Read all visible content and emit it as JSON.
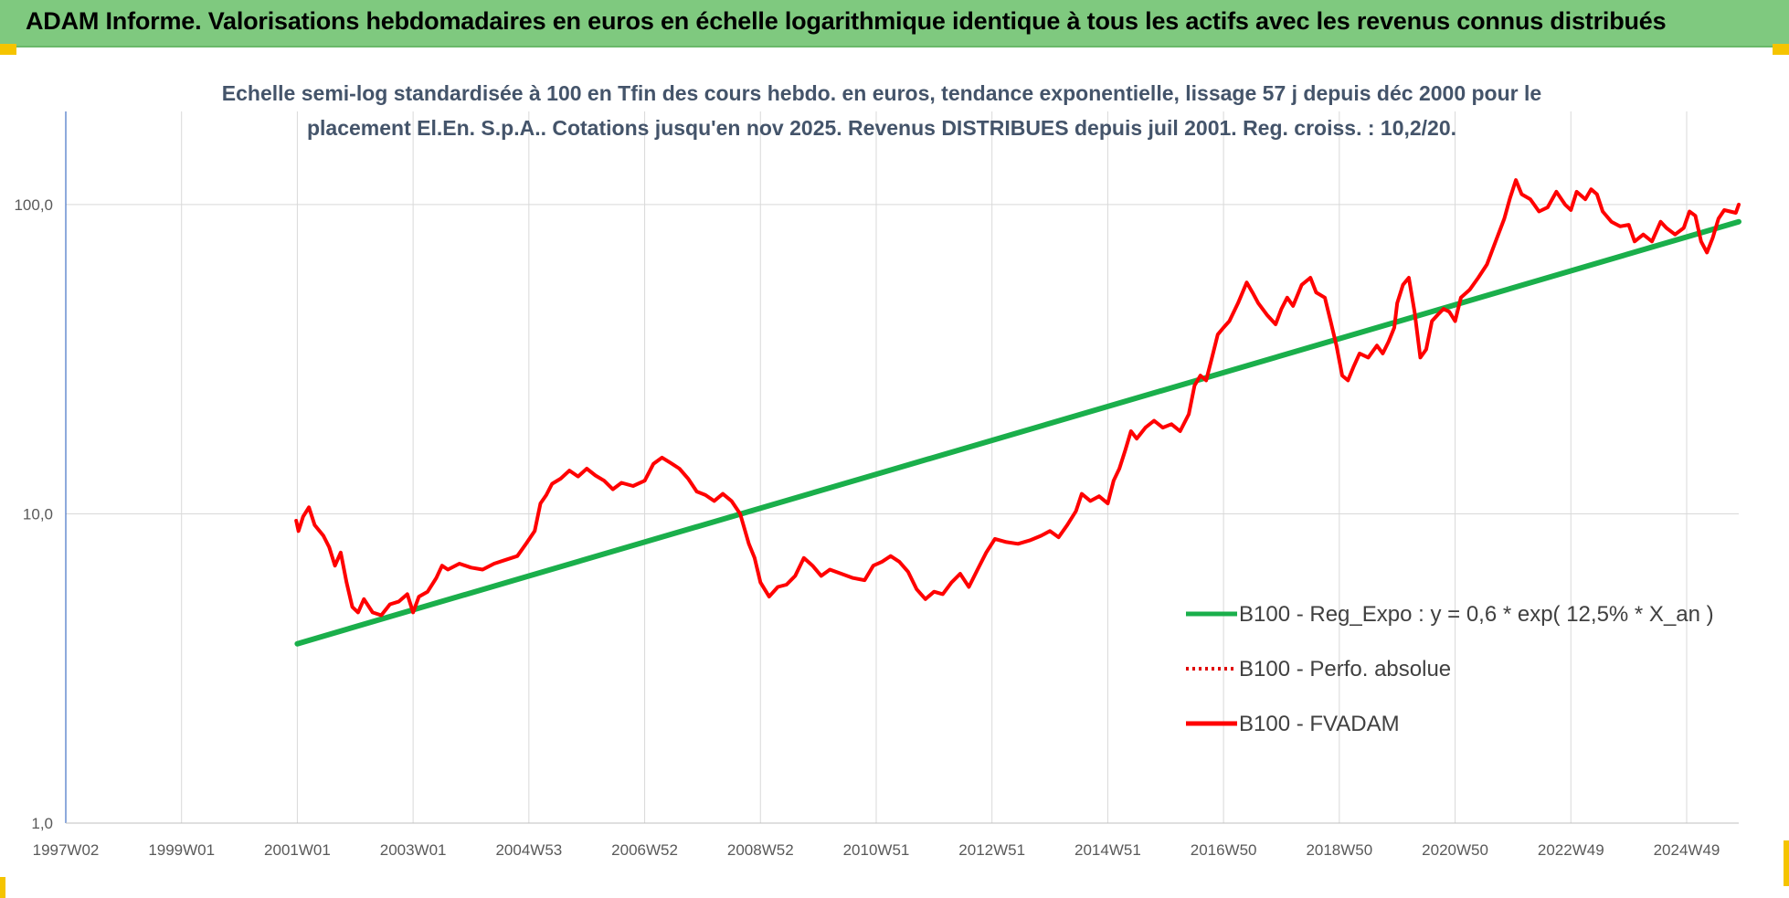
{
  "banner": {
    "title": "ADAM Informe. Valorisations hebdomadaires en euros en échelle logarithmique identique à tous les actifs avec les revenus connus distribués"
  },
  "colors": {
    "banner_bg": "#7fc97f",
    "accent_yellow": "#f5c400",
    "trend_green": "#1aaf4b",
    "fvadam_red": "#ff0000",
    "perf_red": "#e00000",
    "grid": "#d9d9d9",
    "subtitle": "#44546a"
  },
  "chart_data": {
    "type": "line",
    "title_lines": [
      "Echelle semi-log standardisée à 100 en Tfin des cours hebdo. en euros, tendance exponentielle, lissage 57 j depuis déc 2000 pour le",
      "placement El.En. S.p.A.. Cotations jusqu'en nov 2025. Revenus DISTRIBUES depuis juil 2001. Reg. croiss. : 10,2/20."
    ],
    "xlabel": "",
    "ylabel": "",
    "y_scale": "log",
    "ylim": [
      1,
      200
    ],
    "xlim": [
      1997.0,
      2025.9
    ],
    "y_ticks": [
      {
        "value": 1,
        "label": "1,0"
      },
      {
        "value": 10,
        "label": "10,0"
      },
      {
        "value": 100,
        "label": "100,0"
      }
    ],
    "x_ticks": [
      {
        "value": 1997.0,
        "label": "1997W02"
      },
      {
        "value": 1999.0,
        "label": "1999W01"
      },
      {
        "value": 2001.0,
        "label": "2001W01"
      },
      {
        "value": 2003.0,
        "label": "2003W01"
      },
      {
        "value": 2005.0,
        "label": "2004W53"
      },
      {
        "value": 2007.0,
        "label": "2006W52"
      },
      {
        "value": 2009.0,
        "label": "2008W52"
      },
      {
        "value": 2011.0,
        "label": "2010W51"
      },
      {
        "value": 2013.0,
        "label": "2012W51"
      },
      {
        "value": 2015.0,
        "label": "2014W51"
      },
      {
        "value": 2017.0,
        "label": "2016W50"
      },
      {
        "value": 2019.0,
        "label": "2018W50"
      },
      {
        "value": 2021.0,
        "label": "2020W50"
      },
      {
        "value": 2023.0,
        "label": "2022W49"
      },
      {
        "value": 2025.0,
        "label": "2024W49"
      }
    ],
    "grid": true,
    "legend_position": "right",
    "series": [
      {
        "name": "B100 - Reg_Expo : y = 0,6 * exp( 12,5% * X_an )",
        "color": "#1aaf4b",
        "style": "solid",
        "points": [
          [
            2001.0,
            3.8
          ],
          [
            2025.9,
            88
          ]
        ]
      },
      {
        "name": "B100 - Perfo. absolue",
        "color": "#e00000",
        "style": "dotted",
        "points": []
      },
      {
        "name": "B100 - FVADAM",
        "color": "#ff0000",
        "style": "solid",
        "points": [
          [
            2000.98,
            9.5
          ],
          [
            2001.02,
            8.8
          ],
          [
            2001.1,
            9.8
          ],
          [
            2001.2,
            10.5
          ],
          [
            2001.3,
            9.2
          ],
          [
            2001.45,
            8.5
          ],
          [
            2001.55,
            7.8
          ],
          [
            2001.65,
            6.8
          ],
          [
            2001.75,
            7.5
          ],
          [
            2001.85,
            6.0
          ],
          [
            2001.95,
            5.0
          ],
          [
            2002.05,
            4.8
          ],
          [
            2002.15,
            5.3
          ],
          [
            2002.3,
            4.8
          ],
          [
            2002.45,
            4.7
          ],
          [
            2002.6,
            5.1
          ],
          [
            2002.75,
            5.2
          ],
          [
            2002.9,
            5.5
          ],
          [
            2003.0,
            4.8
          ],
          [
            2003.1,
            5.4
          ],
          [
            2003.25,
            5.6
          ],
          [
            2003.4,
            6.2
          ],
          [
            2003.5,
            6.8
          ],
          [
            2003.6,
            6.6
          ],
          [
            2003.8,
            6.9
          ],
          [
            2004.0,
            6.7
          ],
          [
            2004.2,
            6.6
          ],
          [
            2004.4,
            6.9
          ],
          [
            2004.6,
            7.1
          ],
          [
            2004.8,
            7.3
          ],
          [
            2004.95,
            8.0
          ],
          [
            2005.1,
            8.8
          ],
          [
            2005.2,
            10.8
          ],
          [
            2005.3,
            11.5
          ],
          [
            2005.4,
            12.5
          ],
          [
            2005.55,
            13.0
          ],
          [
            2005.7,
            13.8
          ],
          [
            2005.85,
            13.2
          ],
          [
            2006.0,
            14.0
          ],
          [
            2006.15,
            13.3
          ],
          [
            2006.3,
            12.8
          ],
          [
            2006.45,
            12.0
          ],
          [
            2006.6,
            12.6
          ],
          [
            2006.8,
            12.3
          ],
          [
            2007.0,
            12.8
          ],
          [
            2007.15,
            14.5
          ],
          [
            2007.3,
            15.2
          ],
          [
            2007.45,
            14.6
          ],
          [
            2007.6,
            14.0
          ],
          [
            2007.75,
            13.0
          ],
          [
            2007.9,
            11.8
          ],
          [
            2008.05,
            11.5
          ],
          [
            2008.2,
            11.0
          ],
          [
            2008.35,
            11.6
          ],
          [
            2008.5,
            11.0
          ],
          [
            2008.65,
            10.0
          ],
          [
            2008.8,
            8.0
          ],
          [
            2008.9,
            7.2
          ],
          [
            2009.0,
            6.0
          ],
          [
            2009.15,
            5.4
          ],
          [
            2009.3,
            5.8
          ],
          [
            2009.45,
            5.9
          ],
          [
            2009.6,
            6.3
          ],
          [
            2009.75,
            7.2
          ],
          [
            2009.9,
            6.8
          ],
          [
            2010.05,
            6.3
          ],
          [
            2010.2,
            6.6
          ],
          [
            2010.4,
            6.4
          ],
          [
            2010.6,
            6.2
          ],
          [
            2010.8,
            6.1
          ],
          [
            2010.95,
            6.8
          ],
          [
            2011.1,
            7.0
          ],
          [
            2011.25,
            7.3
          ],
          [
            2011.4,
            7.0
          ],
          [
            2011.55,
            6.5
          ],
          [
            2011.7,
            5.7
          ],
          [
            2011.85,
            5.3
          ],
          [
            2012.0,
            5.6
          ],
          [
            2012.15,
            5.5
          ],
          [
            2012.3,
            6.0
          ],
          [
            2012.45,
            6.4
          ],
          [
            2012.6,
            5.8
          ],
          [
            2012.75,
            6.6
          ],
          [
            2012.9,
            7.5
          ],
          [
            2013.05,
            8.3
          ],
          [
            2013.25,
            8.1
          ],
          [
            2013.45,
            8.0
          ],
          [
            2013.65,
            8.2
          ],
          [
            2013.85,
            8.5
          ],
          [
            2014.0,
            8.8
          ],
          [
            2014.15,
            8.4
          ],
          [
            2014.3,
            9.2
          ],
          [
            2014.45,
            10.2
          ],
          [
            2014.55,
            11.6
          ],
          [
            2014.7,
            11.0
          ],
          [
            2014.85,
            11.4
          ],
          [
            2015.0,
            10.8
          ],
          [
            2015.1,
            12.8
          ],
          [
            2015.2,
            14.0
          ],
          [
            2015.3,
            16.0
          ],
          [
            2015.4,
            18.5
          ],
          [
            2015.5,
            17.5
          ],
          [
            2015.65,
            19.0
          ],
          [
            2015.8,
            20.0
          ],
          [
            2015.95,
            19.0
          ],
          [
            2016.1,
            19.5
          ],
          [
            2016.25,
            18.5
          ],
          [
            2016.4,
            21.0
          ],
          [
            2016.5,
            26.0
          ],
          [
            2016.6,
            28.0
          ],
          [
            2016.7,
            27.0
          ],
          [
            2016.8,
            32.0
          ],
          [
            2016.9,
            38.0
          ],
          [
            2017.0,
            40.0
          ],
          [
            2017.1,
            42.0
          ],
          [
            2017.25,
            48.0
          ],
          [
            2017.4,
            56.0
          ],
          [
            2017.5,
            52.0
          ],
          [
            2017.6,
            48.0
          ],
          [
            2017.75,
            44.0
          ],
          [
            2017.9,
            41.0
          ],
          [
            2018.0,
            46.0
          ],
          [
            2018.1,
            50.0
          ],
          [
            2018.2,
            47.0
          ],
          [
            2018.35,
            55.0
          ],
          [
            2018.5,
            58.0
          ],
          [
            2018.6,
            52.0
          ],
          [
            2018.75,
            50.0
          ],
          [
            2018.85,
            42.0
          ],
          [
            2018.95,
            35.0
          ],
          [
            2019.05,
            28.0
          ],
          [
            2019.15,
            27.0
          ],
          [
            2019.25,
            30.0
          ],
          [
            2019.35,
            33.0
          ],
          [
            2019.5,
            32.0
          ],
          [
            2019.65,
            35.0
          ],
          [
            2019.75,
            33.0
          ],
          [
            2019.85,
            36.0
          ],
          [
            2019.95,
            40.0
          ],
          [
            2020.0,
            48.0
          ],
          [
            2020.1,
            55.0
          ],
          [
            2020.2,
            58.0
          ],
          [
            2020.3,
            45.0
          ],
          [
            2020.4,
            32.0
          ],
          [
            2020.5,
            34.0
          ],
          [
            2020.6,
            42.0
          ],
          [
            2020.7,
            44.0
          ],
          [
            2020.8,
            46.0
          ],
          [
            2020.9,
            45.0
          ],
          [
            2021.0,
            42.0
          ],
          [
            2021.1,
            50.0
          ],
          [
            2021.25,
            53.0
          ],
          [
            2021.4,
            58.0
          ],
          [
            2021.55,
            64.0
          ],
          [
            2021.7,
            76.0
          ],
          [
            2021.85,
            90.0
          ],
          [
            2021.95,
            105.0
          ],
          [
            2022.05,
            120.0
          ],
          [
            2022.15,
            108.0
          ],
          [
            2022.3,
            104.0
          ],
          [
            2022.45,
            95.0
          ],
          [
            2022.6,
            98.0
          ],
          [
            2022.75,
            110.0
          ],
          [
            2022.9,
            100.0
          ],
          [
            2023.0,
            96.0
          ],
          [
            2023.1,
            110.0
          ],
          [
            2023.25,
            104.0
          ],
          [
            2023.35,
            112.0
          ],
          [
            2023.45,
            108.0
          ],
          [
            2023.55,
            95.0
          ],
          [
            2023.7,
            88.0
          ],
          [
            2023.85,
            85.0
          ],
          [
            2024.0,
            86.0
          ],
          [
            2024.1,
            76.0
          ],
          [
            2024.25,
            80.0
          ],
          [
            2024.4,
            76.0
          ],
          [
            2024.55,
            88.0
          ],
          [
            2024.65,
            84.0
          ],
          [
            2024.8,
            80.0
          ],
          [
            2024.95,
            84.0
          ],
          [
            2025.05,
            95.0
          ],
          [
            2025.15,
            92.0
          ],
          [
            2025.25,
            76.0
          ],
          [
            2025.35,
            70.0
          ],
          [
            2025.45,
            78.0
          ],
          [
            2025.55,
            90.0
          ],
          [
            2025.65,
            96.0
          ],
          [
            2025.75,
            95.0
          ],
          [
            2025.85,
            94.0
          ],
          [
            2025.9,
            100.0
          ]
        ]
      }
    ]
  }
}
